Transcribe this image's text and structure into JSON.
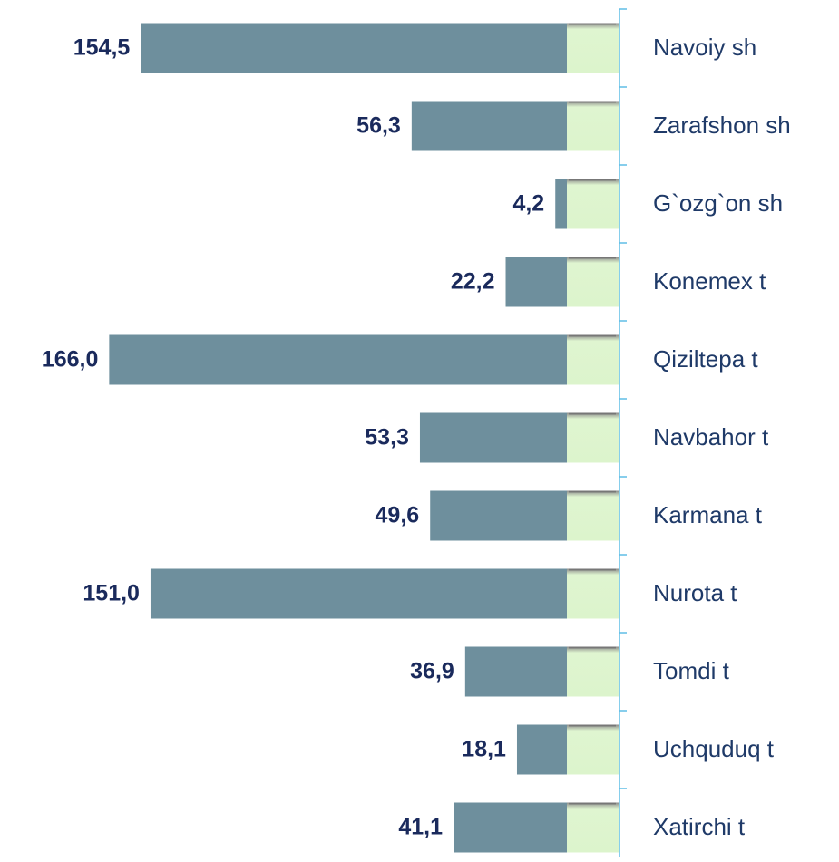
{
  "chart_data": {
    "type": "bar",
    "orientation": "horizontal",
    "x_reversed": true,
    "categories": [
      "Navoiy sh",
      "Zarafshon sh",
      "G`ozg`on sh",
      "Konemex t",
      "Qiziltepa t",
      "Navbahor t",
      "Karmana t",
      "Nurota t",
      "Tomdi t",
      "Uchquduq t",
      "Xatirchi t"
    ],
    "values": [
      154.5,
      56.3,
      4.2,
      22.2,
      166.0,
      53.3,
      49.6,
      151.0,
      36.9,
      18.1,
      41.1
    ],
    "value_labels": [
      "154,5",
      "56,3",
      "4,2",
      "22,2",
      "166,0",
      "53,3",
      "49,6",
      "151,0",
      "36,9",
      "18,1",
      "41,1"
    ],
    "color": "#6e8f9d",
    "xlim": [
      0,
      200
    ]
  }
}
